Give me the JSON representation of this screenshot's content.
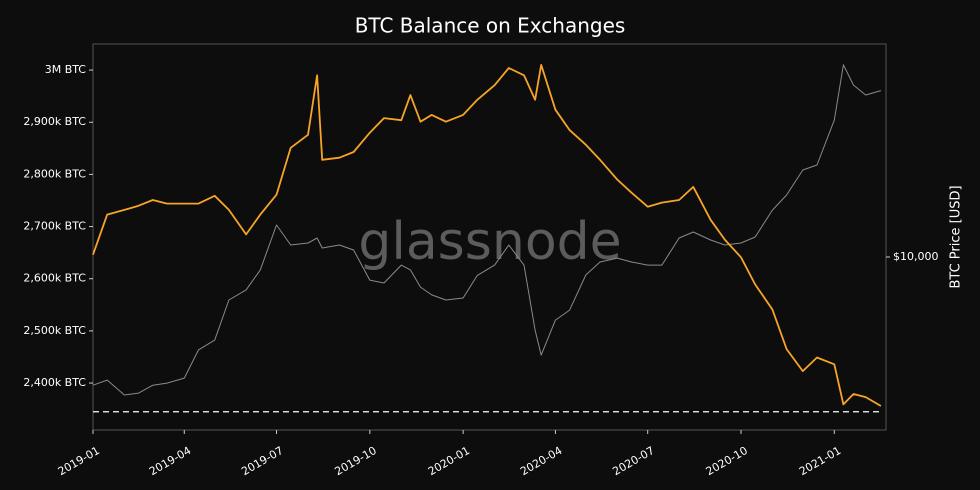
{
  "chart_data": {
    "type": "line",
    "title": "BTC Balance on Exchanges",
    "watermark": "glassnode",
    "y2label": "BTC Price [USD]",
    "x": [
      "2019-01-01",
      "2019-01-15",
      "2019-02-01",
      "2019-02-15",
      "2019-03-01",
      "2019-03-15",
      "2019-04-01",
      "2019-04-15",
      "2019-05-01",
      "2019-05-15",
      "2019-06-01",
      "2019-06-15",
      "2019-07-01",
      "2019-07-15",
      "2019-08-01",
      "2019-08-10",
      "2019-08-15",
      "2019-09-01",
      "2019-09-15",
      "2019-10-01",
      "2019-10-15",
      "2019-11-01",
      "2019-11-10",
      "2019-11-20",
      "2019-12-01",
      "2019-12-15",
      "2020-01-01",
      "2020-01-15",
      "2020-02-01",
      "2020-02-15",
      "2020-03-01",
      "2020-03-12",
      "2020-03-18",
      "2020-04-01",
      "2020-04-15",
      "2020-05-01",
      "2020-05-15",
      "2020-06-01",
      "2020-06-15",
      "2020-07-01",
      "2020-07-15",
      "2020-08-01",
      "2020-08-15",
      "2020-09-01",
      "2020-09-15",
      "2020-10-01",
      "2020-10-15",
      "2020-11-01",
      "2020-11-15",
      "2020-12-01",
      "2020-12-15",
      "2021-01-01",
      "2021-01-10",
      "2021-01-20",
      "2021-02-01",
      "2021-02-16"
    ],
    "series": [
      {
        "name": "BTC Balance on Exchanges",
        "color": "#f7a427",
        "values": [
          2646000,
          2723000,
          2732000,
          2740000,
          2751000,
          2744000,
          2744000,
          2744000,
          2759000,
          2732000,
          2685000,
          2723000,
          2761000,
          2851000,
          2876000,
          2990000,
          2828000,
          2832000,
          2843000,
          2880000,
          2908000,
          2904000,
          2952000,
          2901000,
          2914000,
          2901000,
          2914000,
          2943000,
          2971000,
          3004000,
          2990000,
          2943000,
          3010000,
          2924000,
          2885000,
          2857000,
          2828000,
          2790000,
          2765000,
          2738000,
          2746000,
          2751000,
          2776000,
          2713000,
          2675000,
          2641000,
          2589000,
          2541000,
          2465000,
          2423000,
          2449000,
          2436000,
          2359000,
          2379000,
          2373000,
          2356000
        ]
      },
      {
        "name": "BTC Price [USD]",
        "color": "#8a8a8a",
        "axis": "y2",
        "values": [
          3800,
          3950,
          3530,
          3580,
          3800,
          3860,
          4010,
          4960,
          5340,
          7230,
          7800,
          9070,
          12730,
          10950,
          11110,
          11540,
          10700,
          10950,
          10540,
          8400,
          8220,
          9410,
          9070,
          7970,
          7510,
          7230,
          7340,
          8700,
          9410,
          10950,
          9410,
          5760,
          4770,
          6210,
          6700,
          8730,
          9630,
          9920,
          9630,
          9410,
          9410,
          11540,
          12080,
          11370,
          10950,
          11110,
          11630,
          14250,
          15960,
          19280,
          20020,
          28100,
          42650,
          36600,
          33950,
          35100
        ]
      }
    ],
    "hline": 2345000,
    "xlim": [
      "2019-01-01",
      "2021-02-21"
    ],
    "xticks": [
      {
        "value": "2019-01-01",
        "label": "2019-01"
      },
      {
        "value": "2019-04-01",
        "label": "2019-04"
      },
      {
        "value": "2019-07-01",
        "label": "2019-07"
      },
      {
        "value": "2019-10-01",
        "label": "2019-10"
      },
      {
        "value": "2020-01-01",
        "label": "2020-01"
      },
      {
        "value": "2020-04-01",
        "label": "2020-04"
      },
      {
        "value": "2020-07-01",
        "label": "2020-07"
      },
      {
        "value": "2020-10-01",
        "label": "2020-10"
      },
      {
        "value": "2021-01-01",
        "label": "2021-01"
      }
    ],
    "ylim": [
      2310000,
      3050000
    ],
    "yticks": [
      {
        "value": 2400000,
        "label": "2,400k BTC"
      },
      {
        "value": 2500000,
        "label": "2,500k BTC"
      },
      {
        "value": 2600000,
        "label": "2,600k BTC"
      },
      {
        "value": 2700000,
        "label": "2,700k BTC"
      },
      {
        "value": 2800000,
        "label": "2,800k BTC"
      },
      {
        "value": 2900000,
        "label": "2,900k BTC"
      },
      {
        "value": 3000000,
        "label": "3M BTC"
      }
    ],
    "y2lim": [
      2710,
      49900
    ],
    "y2scale": "log",
    "y2ticks": [
      {
        "value": 10000,
        "label": "$10,000"
      }
    ]
  }
}
